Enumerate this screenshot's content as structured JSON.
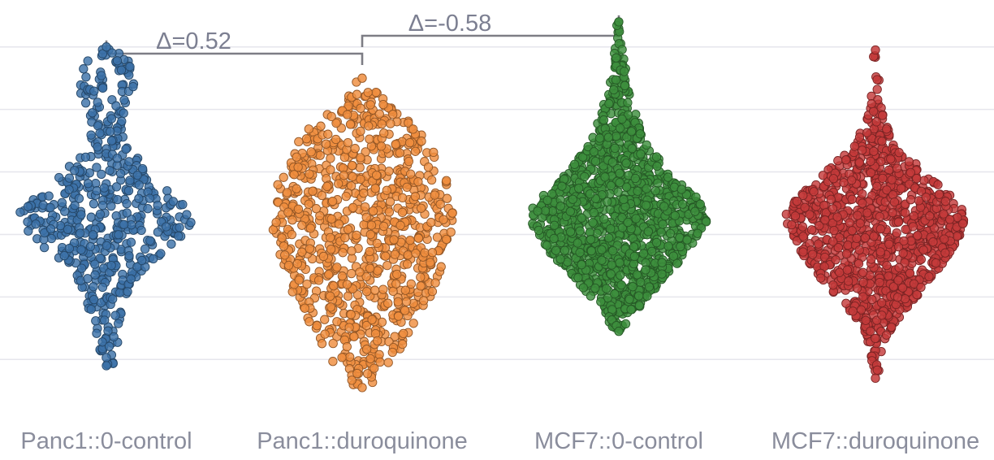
{
  "chart_data": {
    "type": "scatter",
    "subtype": "swarm",
    "title": "",
    "xlabel": "",
    "ylabel": "",
    "ylim": [
      -2.75,
      3.75
    ],
    "grid": true,
    "categories": [
      "Panc1::0-control",
      "Panc1::duroquinone",
      "MCF7::0-control",
      "MCF7::duroquinone"
    ],
    "series": [
      {
        "category": "Panc1::0-control",
        "color": "#3c72a8",
        "n": 520,
        "min": -2.1,
        "max": 3.0,
        "median": 0.3,
        "profile": [
          [
            -2.1,
            0.08
          ],
          [
            -1.5,
            0.15
          ],
          [
            -1.0,
            0.22
          ],
          [
            -0.5,
            0.45
          ],
          [
            0.0,
            0.85
          ],
          [
            0.3,
            1.0
          ],
          [
            0.5,
            0.85
          ],
          [
            1.0,
            0.5
          ],
          [
            1.5,
            0.18
          ],
          [
            2.0,
            0.2
          ],
          [
            2.4,
            0.35
          ],
          [
            2.7,
            0.3
          ],
          [
            3.0,
            0.06
          ]
        ]
      },
      {
        "category": "Panc1::duroquinone",
        "color": "#ef8d3e",
        "n": 880,
        "min": -2.45,
        "max": 2.5,
        "median": 0.2,
        "profile": [
          [
            -2.45,
            0.08
          ],
          [
            -2.0,
            0.35
          ],
          [
            -1.5,
            0.55
          ],
          [
            -1.0,
            0.75
          ],
          [
            -0.5,
            0.88
          ],
          [
            0.0,
            0.98
          ],
          [
            0.3,
            1.0
          ],
          [
            0.8,
            0.95
          ],
          [
            1.2,
            0.85
          ],
          [
            1.6,
            0.65
          ],
          [
            2.0,
            0.38
          ],
          [
            2.3,
            0.15
          ],
          [
            2.5,
            0.05
          ]
        ]
      },
      {
        "category": "MCF7::0-control",
        "color": "#3d8f3d",
        "n": 1300,
        "min": -1.55,
        "max": 3.4,
        "median": 0.35,
        "profile": [
          [
            -1.55,
            0.05
          ],
          [
            -1.2,
            0.2
          ],
          [
            -0.8,
            0.45
          ],
          [
            -0.3,
            0.75
          ],
          [
            0.2,
            0.97
          ],
          [
            0.35,
            1.0
          ],
          [
            0.6,
            0.85
          ],
          [
            1.0,
            0.55
          ],
          [
            1.5,
            0.3
          ],
          [
            2.0,
            0.18
          ],
          [
            2.5,
            0.09
          ],
          [
            3.0,
            0.04
          ],
          [
            3.4,
            0.02
          ]
        ]
      },
      {
        "category": "MCF7::duroquinone",
        "color": "#c43a3a",
        "n": 1100,
        "min": -2.3,
        "max": 2.95,
        "median": 0.25,
        "profile": [
          [
            -2.3,
            0.03
          ],
          [
            -1.8,
            0.07
          ],
          [
            -1.4,
            0.22
          ],
          [
            -1.0,
            0.45
          ],
          [
            -0.5,
            0.72
          ],
          [
            0.0,
            0.95
          ],
          [
            0.3,
            1.0
          ],
          [
            0.6,
            0.85
          ],
          [
            1.0,
            0.55
          ],
          [
            1.4,
            0.25
          ],
          [
            1.8,
            0.1
          ],
          [
            2.2,
            0.06
          ],
          [
            2.6,
            0.04
          ],
          [
            2.95,
            0.02
          ]
        ]
      }
    ],
    "annotations": [
      {
        "text": "Δ=0.52",
        "from": "Panc1::0-control",
        "to": "Panc1::duroquinone"
      },
      {
        "text": "Δ=-0.58",
        "from": "Panc1::duroquinone",
        "to": "MCF7::0-control"
      }
    ]
  }
}
